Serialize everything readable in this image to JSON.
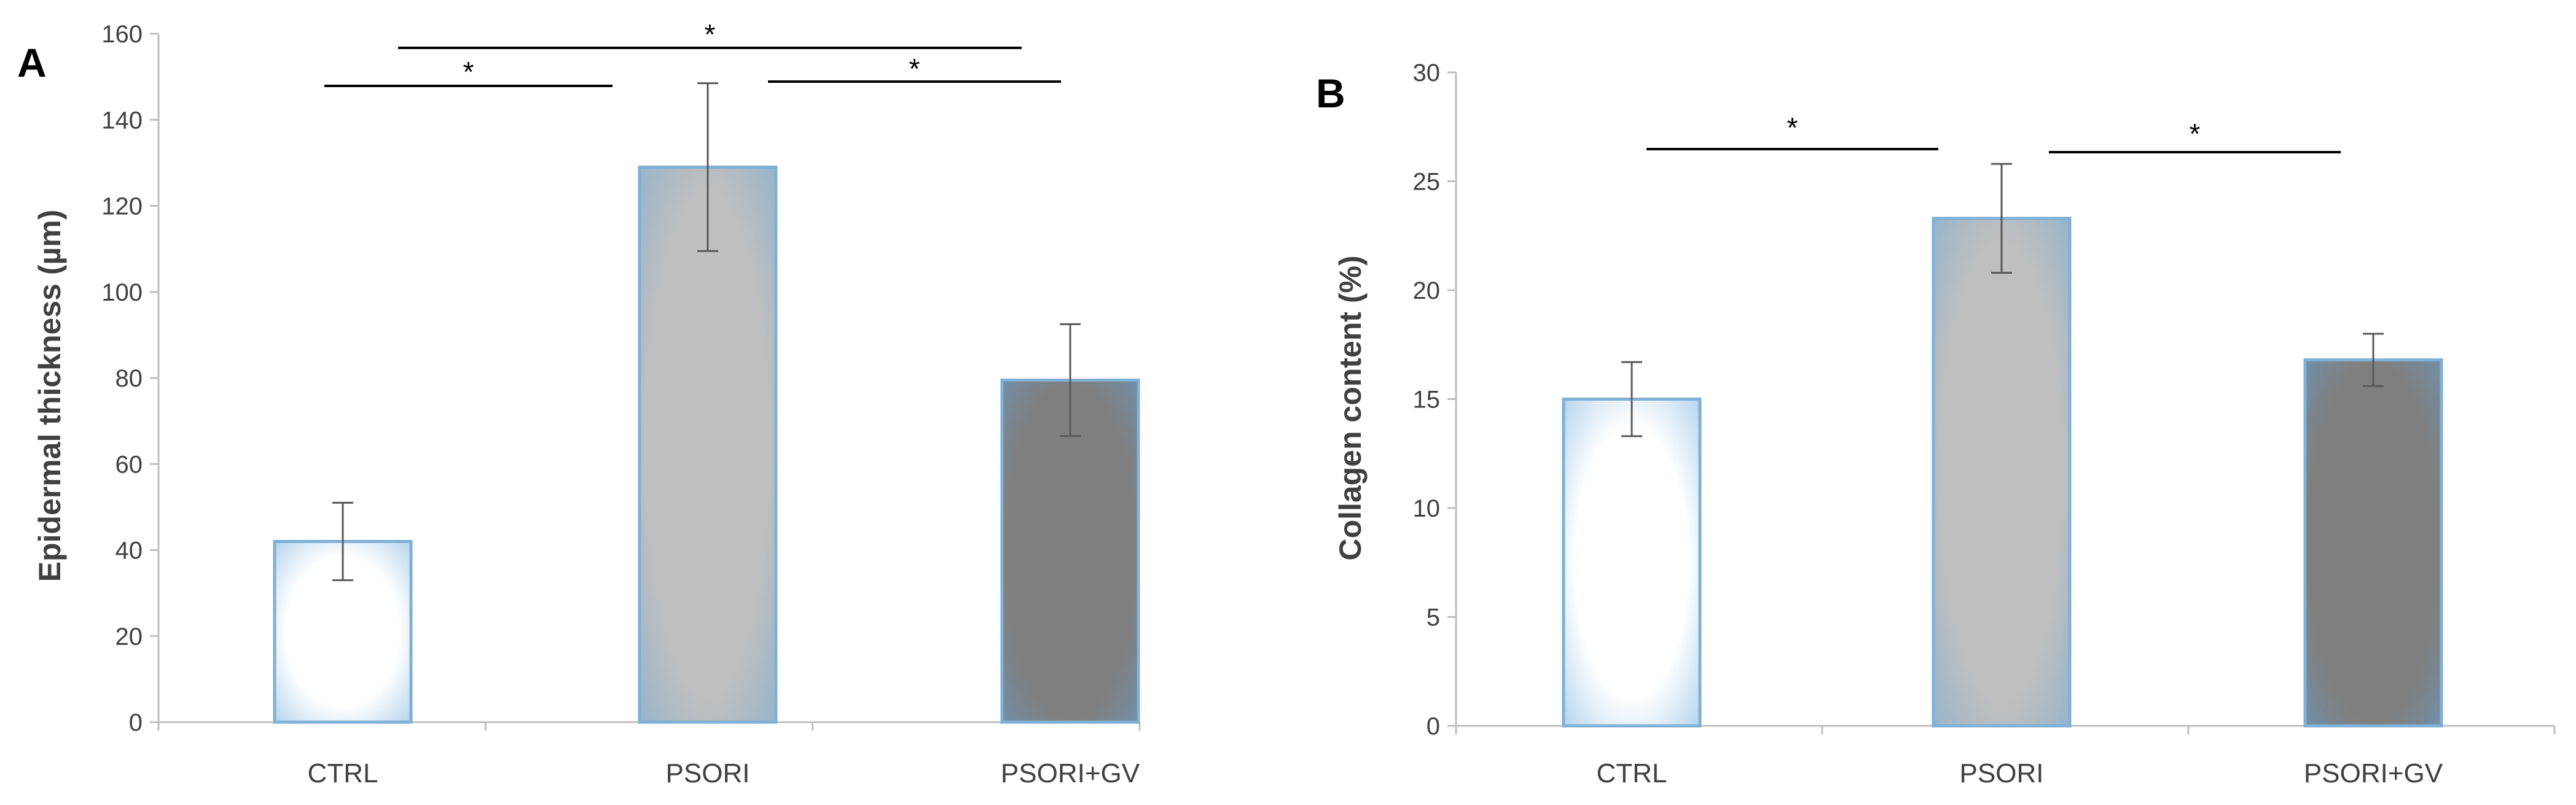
{
  "chart_data": [
    {
      "type": "bar",
      "panel_label": "A",
      "title": "",
      "xlabel": "",
      "ylabel": "Epidermal thickness (µm)",
      "ylim": [
        0,
        160
      ],
      "yticks": [
        0,
        20,
        40,
        60,
        80,
        100,
        120,
        140,
        160
      ],
      "categories": [
        "CTRL",
        "PSORI",
        "PSORI+GV"
      ],
      "values": [
        42,
        129,
        79.5
      ],
      "errors": [
        9,
        19.5,
        13
      ],
      "bar_colors": [
        "#ffffff",
        "#bfbfbf",
        "#7f7f7f"
      ],
      "bar_edge_color": "#7fb0d6",
      "grid": false,
      "significance": [
        {
          "from": 0,
          "to": 1,
          "label": "*"
        },
        {
          "from": 1,
          "to": 2,
          "label": "*"
        },
        {
          "from": 0,
          "to": 2,
          "label": "*"
        }
      ]
    },
    {
      "type": "bar",
      "panel_label": "B",
      "title": "",
      "xlabel": "",
      "ylabel": "Collagen content (%)",
      "ylim": [
        0,
        30
      ],
      "yticks": [
        0,
        5,
        10,
        15,
        20,
        25,
        30
      ],
      "categories": [
        "CTRL",
        "PSORI",
        "PSORI+GV"
      ],
      "values": [
        15,
        23.3,
        16.8
      ],
      "errors": [
        1.7,
        2.5,
        1.2
      ],
      "bar_colors": [
        "#ffffff",
        "#bfbfbf",
        "#7f7f7f"
      ],
      "bar_edge_color": "#7fb0d6",
      "grid": false,
      "significance": [
        {
          "from": 0,
          "to": 1,
          "label": "*"
        },
        {
          "from": 1,
          "to": 2,
          "label": "*"
        }
      ]
    }
  ]
}
